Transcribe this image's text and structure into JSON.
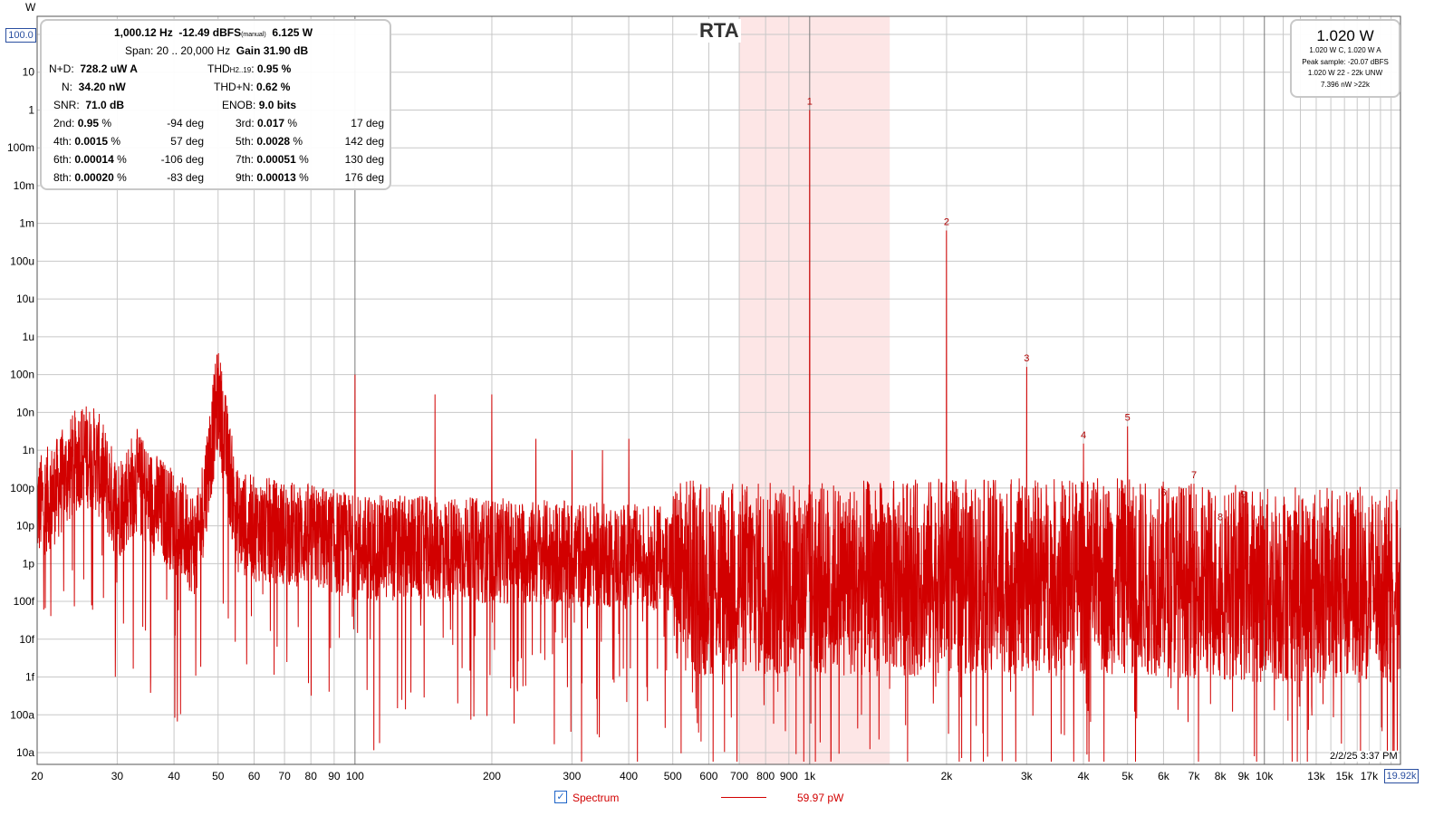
{
  "app": {
    "title": "RTA",
    "y_unit": "W",
    "y_top_value": "100.0",
    "x_right_value": "19.92k",
    "timestamp": "2/2/25 3:37 PM"
  },
  "stats": {
    "line1": {
      "freq": "1,000.12 Hz",
      "dbfs": "-12.49 dBFS",
      "mode": "(manual)",
      "power": "6.125 W"
    },
    "line2": {
      "span": "Span: 20 .. 20,000 Hz",
      "gain": "Gain 31.90 dB"
    },
    "nd_label": "N+D:",
    "nd_value": "728.2 uW A",
    "thd_label": "THD",
    "thd_sub": "H2..19",
    "thd_value": "0.95 %",
    "n_label": "N:",
    "n_value": "34.20 nW",
    "thdn_label": "THD+N:",
    "thdn_value": "0.62 %",
    "snr_label": "SNR:",
    "snr_value": "71.0 dB",
    "enob_label": "ENOB:",
    "enob_value": "9.0 bits",
    "harmonics": [
      {
        "l_label": "2nd:",
        "l_value": "0.95",
        "l_deg": "-94 deg",
        "r_label": "3rd:",
        "r_value": "0.017",
        "r_deg": "17 deg"
      },
      {
        "l_label": "4th:",
        "l_value": "0.0015",
        "l_deg": "57 deg",
        "r_label": "5th:",
        "r_value": "0.0028",
        "r_deg": "142 deg"
      },
      {
        "l_label": "6th:",
        "l_value": "0.00014",
        "l_deg": "-106 deg",
        "r_label": "7th:",
        "r_value": "0.00051",
        "r_deg": "130 deg"
      },
      {
        "l_label": "8th:",
        "l_value": "0.00020",
        "l_deg": "-83 deg",
        "r_label": "9th:",
        "r_value": "0.00013",
        "r_deg": "176 deg"
      }
    ],
    "pct": "%"
  },
  "level": {
    "main": "1.020 W",
    "lines": [
      "1.020 W C, 1.020 W A",
      "Peak sample: -20.07 dBFS",
      "1.020 W 22 - 22k UNW",
      "7.396 nW >22k"
    ]
  },
  "legend": {
    "label": "Spectrum",
    "value": "59.97 pW",
    "checked_icon": "checkbox-checked-icon"
  },
  "colors": {
    "series": "#d20000",
    "highlight": "#fde6e6",
    "grid": "#c8c8c8",
    "grid_major": "#7a7a7a"
  },
  "chart_data": {
    "type": "line",
    "title": "RTA",
    "xlabel": "",
    "ylabel": "W",
    "x_scale": "log",
    "y_scale": "log",
    "xlim": [
      20,
      19920
    ],
    "ylim": [
      1e-17,
      100
    ],
    "grid": true,
    "highlight_band": [
      700,
      1500
    ],
    "x_ticks": [
      20,
      30,
      40,
      50,
      60,
      70,
      80,
      90,
      100,
      200,
      300,
      400,
      500,
      600,
      700,
      800,
      900,
      1000,
      2000,
      3000,
      4000,
      5000,
      6000,
      7000,
      8000,
      9000,
      10000,
      13000,
      15000,
      17000
    ],
    "x_tick_labels": [
      "20",
      "30",
      "40",
      "50",
      "60",
      "70",
      "80",
      "90",
      "100",
      "200",
      "300",
      "400",
      "500",
      "600",
      "700",
      "800",
      "900",
      "1k",
      "2k",
      "3k",
      "4k",
      "5k",
      "6k",
      "7k",
      "8k",
      "9k",
      "10k",
      "13k",
      "15k",
      "17k"
    ],
    "y_ticks": [
      100,
      10,
      1,
      0.1,
      0.01,
      0.001,
      0.0001,
      1e-05,
      1e-06,
      1e-07,
      1e-08,
      1e-09,
      1e-10,
      1e-11,
      1e-12,
      1e-13,
      1e-14,
      1e-15,
      1e-16,
      1e-17
    ],
    "y_tick_labels": [
      "100.0",
      "10",
      "1",
      "100m",
      "10m",
      "1m",
      "100u",
      "10u",
      "1u",
      "100n",
      "10n",
      "1n",
      "100p",
      "10p",
      "1p",
      "100f",
      "10f",
      "1f",
      "100a",
      "10a"
    ],
    "series": [
      {
        "name": "Spectrum",
        "baseline": [
          [
            20,
            1e-10
          ],
          [
            22,
            3e-10
          ],
          [
            25,
            3e-09
          ],
          [
            27,
            2e-09
          ],
          [
            30,
            1e-10
          ],
          [
            33,
            6e-10
          ],
          [
            35,
            2e-10
          ],
          [
            40,
            5e-11
          ],
          [
            45,
            1e-11
          ],
          [
            50,
            1e-07
          ],
          [
            55,
            5e-11
          ],
          [
            60,
            3e-11
          ],
          [
            80,
            2e-11
          ],
          [
            100,
            1e-11
          ],
          [
            200,
            8e-12
          ],
          [
            500,
            5e-12
          ],
          [
            1000,
            4e-12
          ],
          [
            2000,
            5e-12
          ],
          [
            5000,
            5e-12
          ],
          [
            10000,
            3e-12
          ],
          [
            19920,
            3e-12
          ]
        ],
        "peaks": [
          {
            "x": 50,
            "y": 1e-07
          },
          {
            "x": 100,
            "y": 1e-07
          },
          {
            "x": 150,
            "y": 3e-08
          },
          {
            "x": 200,
            "y": 3e-08
          },
          {
            "x": 250,
            "y": 2e-09
          },
          {
            "x": 300,
            "y": 1e-09
          },
          {
            "x": 350,
            "y": 1e-09
          },
          {
            "x": 400,
            "y": 2e-09
          },
          {
            "x": 1000,
            "y": 1.0
          },
          {
            "x": 2000,
            "y": 0.00065
          },
          {
            "x": 3000,
            "y": 1.6e-07
          },
          {
            "x": 4000,
            "y": 1.5e-09
          },
          {
            "x": 5000,
            "y": 4.3e-09
          },
          {
            "x": 6000,
            "y": 4.5e-11
          },
          {
            "x": 7000,
            "y": 1.3e-10
          },
          {
            "x": 8000,
            "y": 1e-11
          },
          {
            "x": 9000,
            "y": 4e-11
          }
        ],
        "dips": [
          {
            "x": 31,
            "y": 2e-12
          },
          {
            "x": 108,
            "y": 1e-14
          },
          {
            "x": 220,
            "y": 5e-16
          },
          {
            "x": 1300,
            "y": 1e-16
          },
          {
            "x": 1870,
            "y": 2e-16
          },
          {
            "x": 5240,
            "y": 8e-17
          },
          {
            "x": 12500,
            "y": 4e-17
          }
        ]
      }
    ],
    "harmonic_markers": [
      {
        "n": "1",
        "x": 1000,
        "y": 1.0
      },
      {
        "n": "2",
        "x": 2000,
        "y": 0.00065
      },
      {
        "n": "3",
        "x": 3000,
        "y": 1.6e-07
      },
      {
        "n": "4",
        "x": 4000,
        "y": 1.5e-09
      },
      {
        "n": "5",
        "x": 5000,
        "y": 4.3e-09
      },
      {
        "n": "6",
        "x": 6000,
        "y": 4.5e-11
      },
      {
        "n": "7",
        "x": 7000,
        "y": 1.3e-10
      },
      {
        "n": "8",
        "x": 8000,
        "y": 1e-11
      },
      {
        "n": "9",
        "x": 9000,
        "y": 4e-11
      }
    ]
  }
}
